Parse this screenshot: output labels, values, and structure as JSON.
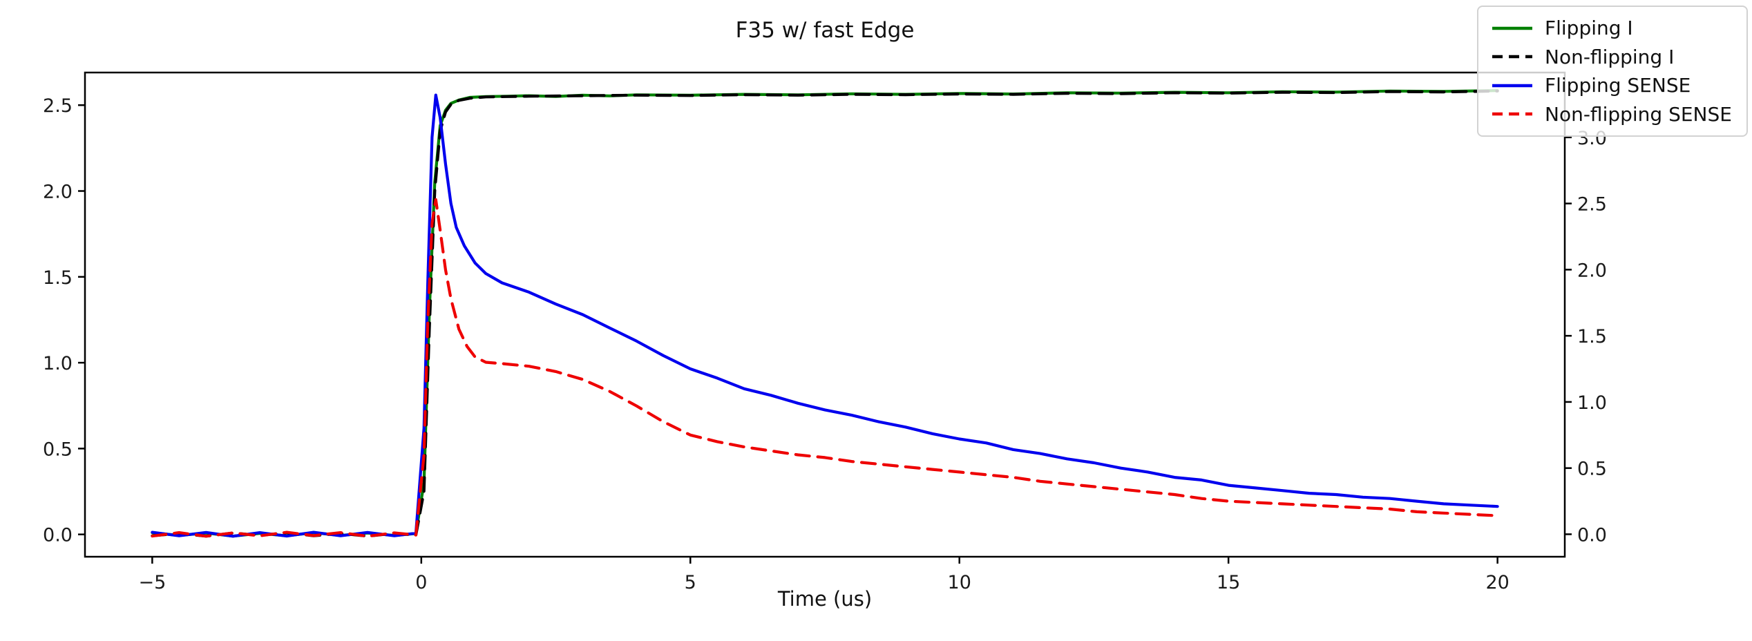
{
  "chart_data": {
    "type": "line",
    "title": "F35 w/ fast Edge",
    "xlabel": "Time (us)",
    "grid": false,
    "legend": {
      "position": "upper right",
      "entries": [
        "Flipping I",
        "Non-flipping I",
        "Flipping SENSE",
        "Non-flipping SENSE"
      ]
    },
    "x_axis": {
      "lim": [
        -6.25,
        21.25
      ],
      "ticks": [
        -5,
        0,
        5,
        10,
        15,
        20
      ],
      "tick_labels": [
        "−5",
        "0",
        "5",
        "10",
        "15",
        "20"
      ]
    },
    "left_axis": {
      "lim": [
        -0.13,
        2.69
      ],
      "ticks": [
        0.0,
        0.5,
        1.0,
        1.5,
        2.0,
        2.5
      ],
      "tick_labels": [
        "0.0",
        "0.5",
        "1.0",
        "1.5",
        "2.0",
        "2.5"
      ]
    },
    "right_axis": {
      "lim": [
        -0.17,
        3.49
      ],
      "ticks": [
        0.0,
        0.5,
        1.0,
        1.5,
        2.0,
        2.5,
        3.0
      ],
      "tick_labels": [
        "0.0",
        "0.5",
        "1.0",
        "1.5",
        "2.0",
        "2.5",
        "3.0"
      ]
    },
    "series": [
      {
        "name": "Flipping I",
        "color": "#008000",
        "style": "solid",
        "axis": "left",
        "points": [
          [
            -5,
            0.01
          ],
          [
            -4.5,
            -0.006
          ],
          [
            -4,
            0.008
          ],
          [
            -3.5,
            -0.01
          ],
          [
            -3,
            0.006
          ],
          [
            -2.5,
            -0.008
          ],
          [
            -2,
            0.01
          ],
          [
            -1.5,
            -0.006
          ],
          [
            -1,
            0.008
          ],
          [
            -0.5,
            -0.006
          ],
          [
            -0.1,
            0.005
          ],
          [
            0.05,
            0.3
          ],
          [
            0.15,
            1.3
          ],
          [
            0.25,
            2.05
          ],
          [
            0.35,
            2.38
          ],
          [
            0.45,
            2.47
          ],
          [
            0.55,
            2.51
          ],
          [
            0.7,
            2.53
          ],
          [
            0.9,
            2.545
          ],
          [
            1.2,
            2.55
          ],
          [
            1.6,
            2.552
          ],
          [
            2,
            2.555
          ],
          [
            2.5,
            2.551
          ],
          [
            3,
            2.558
          ],
          [
            3.5,
            2.554
          ],
          [
            4,
            2.56
          ],
          [
            5,
            2.558
          ],
          [
            6,
            2.563
          ],
          [
            7,
            2.56
          ],
          [
            8,
            2.566
          ],
          [
            9,
            2.563
          ],
          [
            10,
            2.568
          ],
          [
            11,
            2.565
          ],
          [
            12,
            2.572
          ],
          [
            13,
            2.57
          ],
          [
            14,
            2.575
          ],
          [
            15,
            2.572
          ],
          [
            16,
            2.578
          ],
          [
            17,
            2.576
          ],
          [
            18,
            2.582
          ],
          [
            19,
            2.58
          ],
          [
            20,
            2.585
          ]
        ]
      },
      {
        "name": "Non-flipping I",
        "color": "#000000",
        "style": "dashed",
        "axis": "left",
        "points": [
          [
            -5,
            -0.008
          ],
          [
            -4.5,
            0.006
          ],
          [
            -4,
            -0.01
          ],
          [
            -3.5,
            0.008
          ],
          [
            -3,
            -0.006
          ],
          [
            -2.5,
            0.01
          ],
          [
            -2,
            -0.008
          ],
          [
            -1.5,
            0.006
          ],
          [
            -1,
            -0.01
          ],
          [
            -0.5,
            0.006
          ],
          [
            -0.1,
            -0.004
          ],
          [
            0.05,
            0.25
          ],
          [
            0.15,
            1.2
          ],
          [
            0.25,
            2.0
          ],
          [
            0.35,
            2.35
          ],
          [
            0.45,
            2.46
          ],
          [
            0.55,
            2.505
          ],
          [
            0.7,
            2.528
          ],
          [
            0.9,
            2.54
          ],
          [
            1.2,
            2.548
          ],
          [
            1.6,
            2.55
          ],
          [
            2,
            2.552
          ],
          [
            3,
            2.555
          ],
          [
            4,
            2.558
          ],
          [
            5,
            2.556
          ],
          [
            6,
            2.561
          ],
          [
            7,
            2.558
          ],
          [
            8,
            2.563
          ],
          [
            9,
            2.561
          ],
          [
            10,
            2.565
          ],
          [
            11,
            2.563
          ],
          [
            12,
            2.569
          ],
          [
            13,
            2.567
          ],
          [
            14,
            2.572
          ],
          [
            15,
            2.57
          ],
          [
            16,
            2.575
          ],
          [
            17,
            2.573
          ],
          [
            18,
            2.579
          ],
          [
            19,
            2.577
          ],
          [
            20,
            2.582
          ]
        ]
      },
      {
        "name": "Flipping SENSE",
        "color": "#0000ee",
        "style": "solid",
        "axis": "right",
        "points": [
          [
            -5,
            0.015
          ],
          [
            -4.5,
            -0.012
          ],
          [
            -4,
            0.014
          ],
          [
            -3.5,
            -0.015
          ],
          [
            -3,
            0.012
          ],
          [
            -2.5,
            -0.014
          ],
          [
            -2,
            0.015
          ],
          [
            -1.5,
            -0.012
          ],
          [
            -1,
            0.014
          ],
          [
            -0.5,
            -0.012
          ],
          [
            -0.1,
            0.008
          ],
          [
            0.05,
            0.8
          ],
          [
            0.12,
            1.9
          ],
          [
            0.2,
            3.0
          ],
          [
            0.27,
            3.32
          ],
          [
            0.35,
            3.15
          ],
          [
            0.45,
            2.8
          ],
          [
            0.55,
            2.5
          ],
          [
            0.65,
            2.32
          ],
          [
            0.8,
            2.18
          ],
          [
            1,
            2.05
          ],
          [
            1.2,
            1.97
          ],
          [
            1.5,
            1.9
          ],
          [
            2,
            1.83
          ],
          [
            2.5,
            1.74
          ],
          [
            3,
            1.66
          ],
          [
            3.5,
            1.56
          ],
          [
            4,
            1.46
          ],
          [
            4.5,
            1.35
          ],
          [
            5,
            1.25
          ],
          [
            5.5,
            1.18
          ],
          [
            6,
            1.1
          ],
          [
            6.5,
            1.05
          ],
          [
            7,
            0.99
          ],
          [
            7.5,
            0.94
          ],
          [
            8,
            0.9
          ],
          [
            8.5,
            0.85
          ],
          [
            9,
            0.81
          ],
          [
            9.5,
            0.76
          ],
          [
            10,
            0.72
          ],
          [
            10.5,
            0.69
          ],
          [
            11,
            0.64
          ],
          [
            11.5,
            0.61
          ],
          [
            12,
            0.57
          ],
          [
            12.5,
            0.54
          ],
          [
            13,
            0.5
          ],
          [
            13.5,
            0.47
          ],
          [
            14,
            0.43
          ],
          [
            14.5,
            0.41
          ],
          [
            15,
            0.37
          ],
          [
            15.5,
            0.35
          ],
          [
            16,
            0.33
          ],
          [
            16.5,
            0.31
          ],
          [
            17,
            0.3
          ],
          [
            17.5,
            0.28
          ],
          [
            18,
            0.27
          ],
          [
            18.5,
            0.25
          ],
          [
            19,
            0.23
          ],
          [
            19.5,
            0.22
          ],
          [
            20,
            0.21
          ]
        ]
      },
      {
        "name": "Non-flipping SENSE",
        "color": "#ee0000",
        "style": "dashed",
        "axis": "right",
        "points": [
          [
            -5,
            -0.014
          ],
          [
            -4.5,
            0.012
          ],
          [
            -4,
            -0.015
          ],
          [
            -3.5,
            0.01
          ],
          [
            -3,
            -0.012
          ],
          [
            -2.5,
            0.015
          ],
          [
            -2,
            -0.01
          ],
          [
            -1.5,
            0.012
          ],
          [
            -1,
            -0.015
          ],
          [
            -0.5,
            0.01
          ],
          [
            -0.1,
            -0.006
          ],
          [
            0.05,
            0.6
          ],
          [
            0.12,
            1.6
          ],
          [
            0.2,
            2.35
          ],
          [
            0.27,
            2.53
          ],
          [
            0.35,
            2.3
          ],
          [
            0.45,
            2.0
          ],
          [
            0.55,
            1.78
          ],
          [
            0.7,
            1.55
          ],
          [
            0.85,
            1.42
          ],
          [
            1,
            1.34
          ],
          [
            1.2,
            1.3
          ],
          [
            1.5,
            1.29
          ],
          [
            2,
            1.27
          ],
          [
            2.5,
            1.23
          ],
          [
            3,
            1.17
          ],
          [
            3.5,
            1.08
          ],
          [
            4,
            0.97
          ],
          [
            4.5,
            0.85
          ],
          [
            5,
            0.75
          ],
          [
            5.5,
            0.7
          ],
          [
            6,
            0.66
          ],
          [
            6.5,
            0.63
          ],
          [
            7,
            0.6
          ],
          [
            7.5,
            0.58
          ],
          [
            8,
            0.55
          ],
          [
            8.5,
            0.53
          ],
          [
            9,
            0.51
          ],
          [
            9.5,
            0.49
          ],
          [
            10,
            0.47
          ],
          [
            10.5,
            0.45
          ],
          [
            11,
            0.43
          ],
          [
            11.5,
            0.4
          ],
          [
            12,
            0.38
          ],
          [
            12.5,
            0.36
          ],
          [
            13,
            0.34
          ],
          [
            13.5,
            0.32
          ],
          [
            14,
            0.3
          ],
          [
            14.5,
            0.27
          ],
          [
            15,
            0.25
          ],
          [
            15.5,
            0.24
          ],
          [
            16,
            0.23
          ],
          [
            16.5,
            0.22
          ],
          [
            17,
            0.21
          ],
          [
            17.5,
            0.2
          ],
          [
            18,
            0.19
          ],
          [
            18.5,
            0.17
          ],
          [
            19,
            0.16
          ],
          [
            19.5,
            0.15
          ],
          [
            20,
            0.14
          ]
        ]
      }
    ]
  }
}
